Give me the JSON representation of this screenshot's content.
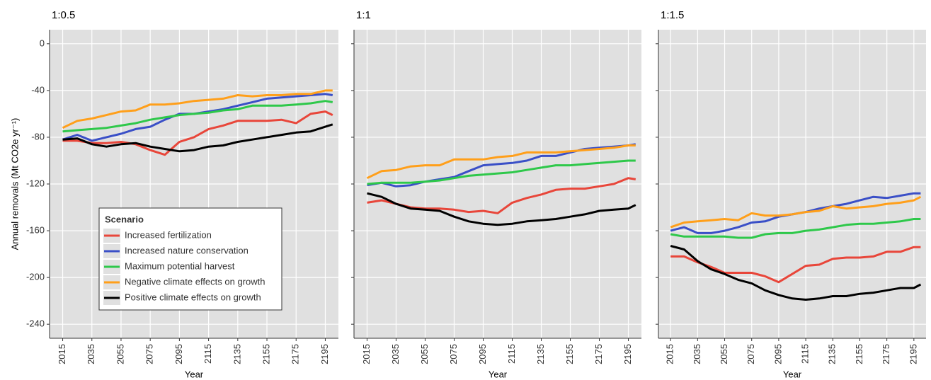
{
  "chart_data": [
    {
      "type": "line",
      "title": "1:0.5",
      "xlabel": "Year",
      "ylabel": "Annual removals (Mt CO2e yr⁻¹)",
      "legend_title": "Scenario",
      "legend": "bottom-left",
      "grid": true,
      "x": [
        2015,
        2025,
        2035,
        2045,
        2055,
        2065,
        2075,
        2085,
        2095,
        2105,
        2115,
        2125,
        2135,
        2145,
        2155,
        2165,
        2175,
        2185,
        2195,
        2200
      ],
      "xlim": [
        2006,
        2204
      ],
      "xticks": [
        2015,
        2035,
        2055,
        2075,
        2095,
        2115,
        2135,
        2155,
        2175,
        2195
      ],
      "ylim": [
        -252,
        12
      ],
      "yticks": [
        0,
        -40,
        -80,
        -120,
        -160,
        -200,
        -240
      ],
      "series": [
        {
          "name": "Increased fertilization",
          "color": "#e8463a",
          "values": [
            -83,
            -83,
            -85,
            -85,
            -84,
            -86,
            -91,
            -95,
            -84,
            -80,
            -73,
            -70,
            -66,
            -66,
            -66,
            -65,
            -68,
            -60,
            -58,
            -61
          ]
        },
        {
          "name": "Increased nature conservation",
          "color": "#3a4fc7",
          "values": [
            -82,
            -78,
            -83,
            -80,
            -77,
            -73,
            -71,
            -65,
            -60,
            -60,
            -58,
            -56,
            -53,
            -50,
            -47,
            -46,
            -45,
            -44,
            -43,
            -44
          ]
        },
        {
          "name": "Maximum potential harvest",
          "color": "#2ec84a",
          "values": [
            -75,
            -74,
            -73,
            -72,
            -70,
            -68,
            -65,
            -63,
            -61,
            -60,
            -59,
            -57,
            -56,
            -53,
            -53,
            -53,
            -52,
            -51,
            -49,
            -50
          ]
        },
        {
          "name": "Negative climate effects on growth",
          "color": "#ff9f1a",
          "values": [
            -72,
            -66,
            -64,
            -61,
            -58,
            -57,
            -52,
            -52,
            -51,
            -49,
            -48,
            -47,
            -44,
            -45,
            -44,
            -44,
            -43,
            -43,
            -40,
            -40
          ]
        },
        {
          "name": "Positive climate effects on growth",
          "color": "#000000",
          "values": [
            -82,
            -81,
            -86,
            -88,
            -86,
            -85,
            -88,
            -90,
            -92,
            -91,
            -88,
            -87,
            -84,
            -82,
            -80,
            -78,
            -76,
            -75,
            -71,
            -69
          ]
        }
      ]
    },
    {
      "type": "line",
      "title": "1:1",
      "xlabel": "Year",
      "grid": true,
      "x": [
        2015,
        2025,
        2035,
        2045,
        2055,
        2065,
        2075,
        2085,
        2095,
        2105,
        2115,
        2125,
        2135,
        2145,
        2155,
        2165,
        2175,
        2185,
        2195,
        2200
      ],
      "xlim": [
        2006,
        2204
      ],
      "xticks": [
        2015,
        2035,
        2055,
        2075,
        2095,
        2115,
        2135,
        2155,
        2175,
        2195
      ],
      "ylim": [
        -252,
        12
      ],
      "yticks": [
        0,
        -40,
        -80,
        -120,
        -160,
        -200,
        -240
      ],
      "series": [
        {
          "color": "#e8463a",
          "values": [
            -136,
            -134,
            -137,
            -140,
            -141,
            -141,
            -142,
            -144,
            -143,
            -145,
            -136,
            -132,
            -129,
            -125,
            -124,
            -124,
            -122,
            -120,
            -115,
            -116
          ]
        },
        {
          "color": "#3a4fc7",
          "values": [
            -121,
            -119,
            -122,
            -121,
            -118,
            -116,
            -114,
            -109,
            -104,
            -103,
            -102,
            -100,
            -96,
            -96,
            -93,
            -90,
            -89,
            -88,
            -87,
            -86
          ]
        },
        {
          "color": "#2ec84a",
          "values": [
            -120,
            -119,
            -119,
            -119,
            -118,
            -117,
            -115,
            -113,
            -112,
            -111,
            -110,
            -108,
            -106,
            -104,
            -104,
            -103,
            -102,
            -101,
            -100,
            -100
          ]
        },
        {
          "color": "#ff9f1a",
          "values": [
            -115,
            -109,
            -108,
            -105,
            -104,
            -104,
            -99,
            -99,
            -99,
            -97,
            -96,
            -93,
            -93,
            -93,
            -92,
            -91,
            -90,
            -89,
            -87,
            -87
          ]
        },
        {
          "color": "#000000",
          "values": [
            -128,
            -131,
            -137,
            -141,
            -142,
            -143,
            -148,
            -152,
            -154,
            -155,
            -154,
            -152,
            -151,
            -150,
            -148,
            -146,
            -143,
            -142,
            -141,
            -138
          ]
        }
      ]
    },
    {
      "type": "line",
      "title": "1:1.5",
      "xlabel": "Year",
      "grid": true,
      "x": [
        2015,
        2025,
        2035,
        2045,
        2055,
        2065,
        2075,
        2085,
        2095,
        2105,
        2115,
        2125,
        2135,
        2145,
        2155,
        2165,
        2175,
        2185,
        2195,
        2200
      ],
      "xlim": [
        2006,
        2204
      ],
      "xticks": [
        2015,
        2035,
        2055,
        2075,
        2095,
        2115,
        2135,
        2155,
        2175,
        2195
      ],
      "ylim": [
        -252,
        12
      ],
      "yticks": [
        0,
        -40,
        -80,
        -120,
        -160,
        -200,
        -240
      ],
      "series": [
        {
          "color": "#e8463a",
          "values": [
            -182,
            -182,
            -187,
            -191,
            -196,
            -196,
            -196,
            -199,
            -204,
            -197,
            -190,
            -189,
            -184,
            -183,
            -183,
            -182,
            -178,
            -178,
            -174,
            -174
          ]
        },
        {
          "color": "#3a4fc7",
          "values": [
            -160,
            -157,
            -162,
            -162,
            -160,
            -157,
            -153,
            -152,
            -148,
            -146,
            -144,
            -141,
            -139,
            -137,
            -134,
            -131,
            -132,
            -130,
            -128,
            -128
          ]
        },
        {
          "color": "#2ec84a",
          "values": [
            -163,
            -165,
            -165,
            -165,
            -165,
            -166,
            -166,
            -163,
            -162,
            -162,
            -160,
            -159,
            -157,
            -155,
            -154,
            -154,
            -153,
            -152,
            -150,
            -150
          ]
        },
        {
          "color": "#ff9f1a",
          "values": [
            -157,
            -153,
            -152,
            -151,
            -150,
            -151,
            -145,
            -147,
            -147,
            -146,
            -144,
            -143,
            -139,
            -141,
            -140,
            -139,
            -137,
            -136,
            -134,
            -131
          ]
        },
        {
          "color": "#000000",
          "values": [
            -173,
            -176,
            -186,
            -193,
            -197,
            -202,
            -205,
            -211,
            -215,
            -218,
            -219,
            -218,
            -216,
            -216,
            -214,
            -213,
            -211,
            -209,
            -209,
            -206
          ]
        }
      ]
    }
  ]
}
